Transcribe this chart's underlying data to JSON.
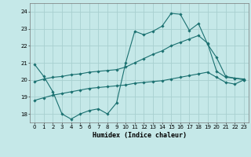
{
  "xlabel": "Humidex (Indice chaleur)",
  "xlim": [
    -0.5,
    23.5
  ],
  "ylim": [
    17.5,
    24.5
  ],
  "yticks": [
    18,
    19,
    20,
    21,
    22,
    23,
    24
  ],
  "xticks": [
    0,
    1,
    2,
    3,
    4,
    5,
    6,
    7,
    8,
    9,
    10,
    11,
    12,
    13,
    14,
    15,
    16,
    17,
    18,
    19,
    20,
    21,
    22,
    23
  ],
  "background_color": "#c5e8e8",
  "grid_color": "#a8d0d0",
  "line_color": "#1a7070",
  "line1_x": [
    0,
    1,
    2,
    3,
    4,
    5,
    6,
    7,
    8,
    9,
    10,
    11,
    12,
    13,
    14,
    15,
    16,
    17,
    18,
    19,
    20,
    21,
    22,
    23
  ],
  "line1_y": [
    20.9,
    20.2,
    19.3,
    18.0,
    17.7,
    18.0,
    18.2,
    18.3,
    18.0,
    18.65,
    21.0,
    22.85,
    22.65,
    22.85,
    23.15,
    23.9,
    23.85,
    22.9,
    23.3,
    22.1,
    21.3,
    20.2,
    20.1,
    20.05
  ],
  "line2_x": [
    0,
    1,
    2,
    3,
    4,
    5,
    6,
    7,
    8,
    9,
    10,
    11,
    12,
    13,
    14,
    15,
    16,
    17,
    18,
    19,
    20,
    21,
    22,
    23
  ],
  "line2_y": [
    19.9,
    20.05,
    20.15,
    20.2,
    20.3,
    20.35,
    20.45,
    20.5,
    20.55,
    20.6,
    20.75,
    21.0,
    21.25,
    21.5,
    21.7,
    22.0,
    22.2,
    22.4,
    22.6,
    22.15,
    20.5,
    20.15,
    20.1,
    20.0
  ],
  "line3_x": [
    0,
    1,
    2,
    3,
    4,
    5,
    6,
    7,
    8,
    9,
    10,
    11,
    12,
    13,
    14,
    15,
    16,
    17,
    18,
    19,
    20,
    21,
    22,
    23
  ],
  "line3_y": [
    18.8,
    18.95,
    19.1,
    19.2,
    19.3,
    19.4,
    19.5,
    19.55,
    19.6,
    19.65,
    19.7,
    19.8,
    19.85,
    19.9,
    19.95,
    20.05,
    20.15,
    20.25,
    20.35,
    20.45,
    20.15,
    19.85,
    19.75,
    20.0
  ]
}
